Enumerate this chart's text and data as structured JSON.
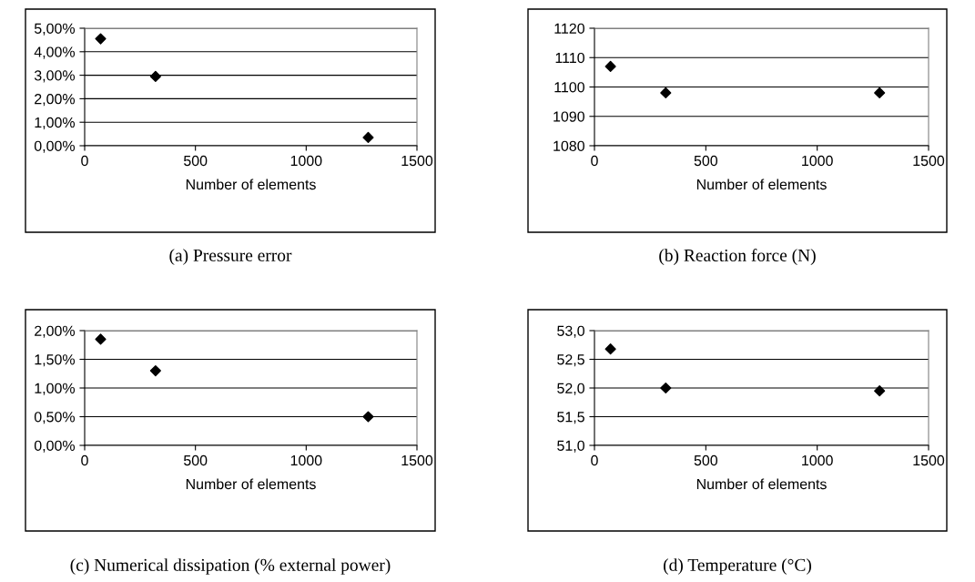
{
  "chart_data": [
    {
      "type": "scatter",
      "title": "(a) Pressure error",
      "xlabel": "Number of elements",
      "x": [
        72,
        320,
        1280
      ],
      "values": [
        4.55,
        2.95,
        0.35
      ],
      "color": "#000000",
      "marker": "diamond",
      "xlim": [
        0,
        1500
      ],
      "xticks": [
        0,
        500,
        1000,
        1500
      ],
      "ylim": [
        0,
        5
      ],
      "yticks": [
        {
          "value": 0,
          "label": "0,00%"
        },
        {
          "value": 1,
          "label": "1,00%"
        },
        {
          "value": 2,
          "label": "2,00%"
        },
        {
          "value": 3,
          "label": "3,00%"
        },
        {
          "value": 4,
          "label": "4,00%"
        },
        {
          "value": 5,
          "label": "5,00%"
        }
      ],
      "grid": "y",
      "legend": false
    },
    {
      "type": "scatter",
      "title": "(b) Reaction force (N)",
      "xlabel": "Number of elements",
      "x": [
        72,
        320,
        1280
      ],
      "values": [
        1107,
        1098,
        1098
      ],
      "color": "#000000",
      "marker": "diamond",
      "xlim": [
        0,
        1500
      ],
      "xticks": [
        0,
        500,
        1000,
        1500
      ],
      "ylim": [
        1080,
        1120
      ],
      "yticks": [
        1080,
        1090,
        1100,
        1110,
        1120
      ],
      "grid": "y",
      "legend": false
    },
    {
      "type": "scatter",
      "title": "(c) Numerical dissipation (% external power)",
      "xlabel": "Number of elements",
      "x": [
        72,
        320,
        1280
      ],
      "values": [
        1.85,
        1.3,
        0.5
      ],
      "color": "#000000",
      "marker": "diamond",
      "xlim": [
        0,
        1500
      ],
      "xticks": [
        0,
        500,
        1000,
        1500
      ],
      "ylim": [
        0,
        2
      ],
      "yticks": [
        {
          "value": 0,
          "label": "0,00%"
        },
        {
          "value": 0.5,
          "label": "0,50%"
        },
        {
          "value": 1,
          "label": "1,00%"
        },
        {
          "value": 1.5,
          "label": "1,50%"
        },
        {
          "value": 2,
          "label": "2,00%"
        }
      ],
      "grid": "y",
      "legend": false
    },
    {
      "type": "scatter",
      "title": "(d) Temperature (°C)",
      "xlabel": "Number of elements",
      "x": [
        72,
        320,
        1280
      ],
      "values": [
        52.68,
        52.0,
        51.95
      ],
      "color": "#000000",
      "marker": "diamond",
      "xlim": [
        0,
        1500
      ],
      "xticks": [
        0,
        500,
        1000,
        1500
      ],
      "ylim": [
        51,
        53
      ],
      "yticks": [
        {
          "value": 51,
          "label": "51,0"
        },
        {
          "value": 51.5,
          "label": "51,5"
        },
        {
          "value": 52,
          "label": "52,0"
        },
        {
          "value": 52.5,
          "label": "52,5"
        },
        {
          "value": 53,
          "label": "53,0"
        }
      ],
      "grid": "y",
      "legend": false
    }
  ]
}
